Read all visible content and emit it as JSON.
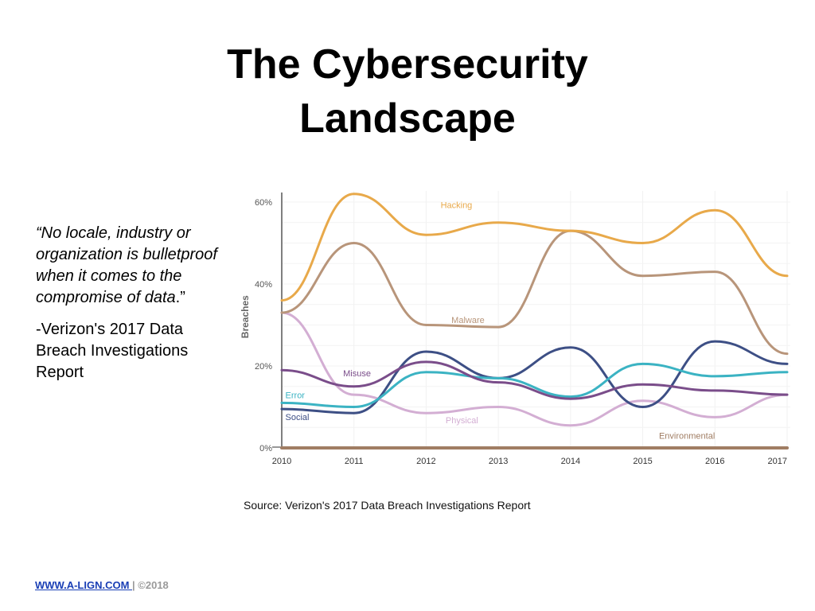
{
  "slide": {
    "title_line1": "The Cybersecurity",
    "title_line2": "Landscape"
  },
  "quote": {
    "open_mark": "“",
    "text_italic": "No locale, industry or organization is bulletproof when it comes to the compromise of data",
    "close": ".”",
    "attribution": "-Verizon's 2017 Data Breach Investigations Report"
  },
  "source_note": "Source: Verizon's 2017 Data Breach Investigations Report",
  "footer": {
    "link_text": "WWW.A-LIGN.COM ",
    "suffix": "| ©2018"
  },
  "chart_data": {
    "type": "line",
    "ylabel": "Breaches",
    "x": [
      2010,
      2011,
      2012,
      2013,
      2014,
      2015,
      2016,
      2017
    ],
    "x_tick_labels": [
      "2010",
      "2011",
      "2012",
      "2013",
      "2014",
      "2015",
      "2016",
      "2017"
    ],
    "y_tick_labels": [
      "0%",
      "20%",
      "40%",
      "60%"
    ],
    "y_ticks": [
      0,
      20,
      40,
      60
    ],
    "ylim": [
      0,
      62
    ],
    "grid": true,
    "series": [
      {
        "name": "Hacking",
        "color": "#e8a94a",
        "values": [
          36,
          62,
          52,
          55,
          53,
          50,
          58,
          42
        ]
      },
      {
        "name": "Malware",
        "color": "#b8957a",
        "values": [
          33,
          50,
          30,
          29.5,
          53,
          42,
          43,
          23
        ]
      },
      {
        "name": "Misuse",
        "color": "#7a4d8a",
        "values": [
          19,
          15,
          21,
          16,
          12,
          15.5,
          14,
          13
        ]
      },
      {
        "name": "Error",
        "color": "#3bb3c3",
        "values": [
          11,
          10,
          18.5,
          17,
          12.5,
          20.5,
          17.5,
          18.5
        ]
      },
      {
        "name": "Social",
        "color": "#3d4f85",
        "values": [
          9.5,
          8.5,
          23.5,
          17,
          24.5,
          10,
          26,
          20.5
        ]
      },
      {
        "name": "Physical",
        "color": "#d3aed3",
        "values": [
          33,
          13,
          8.5,
          10,
          5.5,
          11.5,
          7.5,
          13
        ]
      },
      {
        "name": "Environmental",
        "color": "#a07d63",
        "values": [
          0,
          0,
          0,
          0,
          0,
          0,
          0,
          0
        ]
      }
    ]
  }
}
